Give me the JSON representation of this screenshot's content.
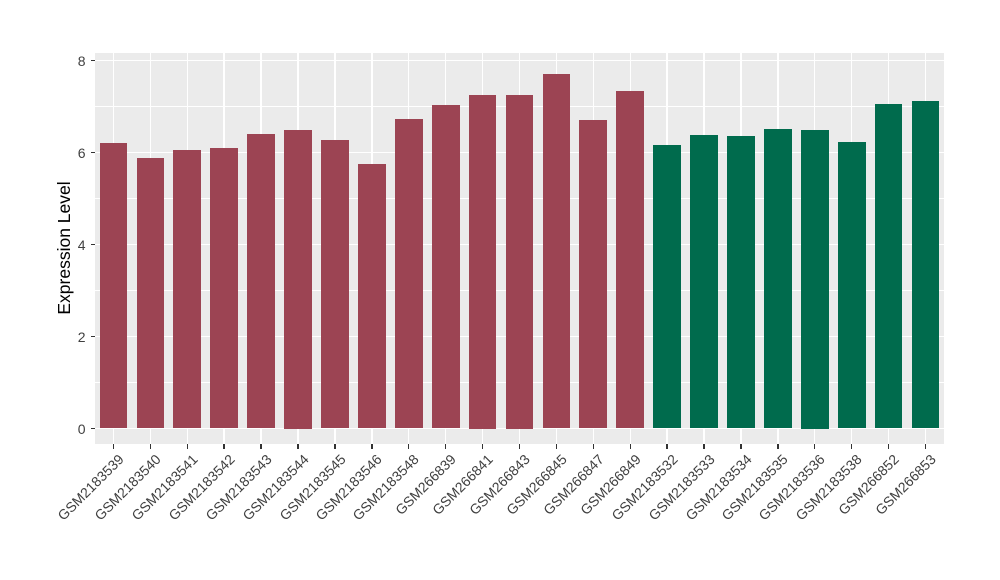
{
  "chart_data": {
    "type": "bar",
    "title": "",
    "xlabel": "",
    "ylabel": "Expression Level",
    "ylim": [
      0,
      8
    ],
    "yticks_major": [
      0,
      2,
      4,
      6,
      8
    ],
    "yticks_minor": [
      1,
      3,
      5,
      7
    ],
    "grid": "on",
    "legend": "none",
    "panel_bg": "#ebebeb",
    "grid_color": "#ffffff",
    "tick_color": "#333333",
    "categories": [
      "GSM2183539",
      "GSM2183540",
      "GSM2183541",
      "GSM2183542",
      "GSM2183543",
      "GSM2183544",
      "GSM2183545",
      "GSM2183546",
      "GSM2183548",
      "GSM266839",
      "GSM266841",
      "GSM266843",
      "GSM266845",
      "GSM266847",
      "GSM266849",
      "GSM2183532",
      "GSM2183533",
      "GSM2183534",
      "GSM2183535",
      "GSM2183536",
      "GSM2183538",
      "GSM266852",
      "GSM266853"
    ],
    "values": [
      6.2,
      5.88,
      6.05,
      6.1,
      6.4,
      6.5,
      6.27,
      5.76,
      6.73,
      7.03,
      7.25,
      7.25,
      7.7,
      6.71,
      7.33,
      6.16,
      6.38,
      6.36,
      6.51,
      6.5,
      6.23,
      7.05,
      7.11
    ],
    "groups": [
      "group1",
      "group1",
      "group1",
      "group1",
      "group1",
      "group1",
      "group1",
      "group1",
      "group1",
      "group1",
      "group1",
      "group1",
      "group1",
      "group1",
      "group1",
      "group2",
      "group2",
      "group2",
      "group2",
      "group2",
      "group2",
      "group2",
      "group2"
    ],
    "colors": {
      "group1": "#9c4453",
      "group2": "#006b4d"
    }
  }
}
